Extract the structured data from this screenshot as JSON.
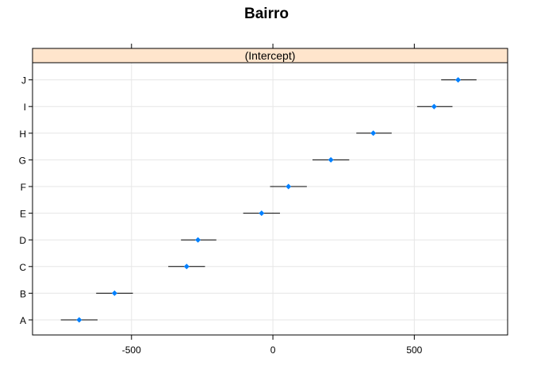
{
  "chart_data": {
    "type": "dotplot",
    "title": "Bairro",
    "panel_label": "(Intercept)",
    "xlabel": "",
    "ylabel": "",
    "xlim": [
      -850,
      830
    ],
    "x_ticks": [
      -500,
      0,
      500
    ],
    "x_tick_labels": [
      "-500",
      "0",
      "500"
    ],
    "grid": true,
    "categories": [
      "A",
      "B",
      "C",
      "D",
      "E",
      "F",
      "G",
      "H",
      "I",
      "J"
    ],
    "series": [
      {
        "values": [
          -685,
          -560,
          -305,
          -265,
          -40,
          55,
          205,
          355,
          570,
          655
        ],
        "lower": [
          -750,
          -625,
          -370,
          -325,
          -105,
          -10,
          140,
          295,
          510,
          595
        ],
        "upper": [
          -620,
          -495,
          -240,
          -200,
          25,
          120,
          270,
          420,
          635,
          720
        ]
      }
    ],
    "colors": {
      "point": "#0080ff",
      "strip": "#ffe5cc",
      "grid": "#e6e6e6",
      "interval": "#000000"
    }
  }
}
